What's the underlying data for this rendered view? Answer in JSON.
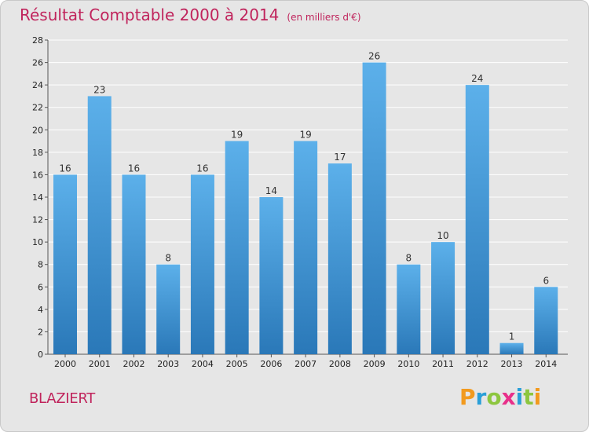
{
  "header": {
    "title": "Résultat Comptable 2000 à 2014",
    "subtitle": "(en milliers d'€)"
  },
  "commune": "BLAZIERT",
  "logo": {
    "text": "Proxiti",
    "letters": [
      {
        "ch": "P",
        "color": "#f29a1e"
      },
      {
        "ch": "r",
        "color": "#2a9fd8"
      },
      {
        "ch": "o",
        "color": "#8dc63f"
      },
      {
        "ch": "x",
        "color": "#e8308a"
      },
      {
        "ch": "i",
        "color": "#2a9fd8"
      },
      {
        "ch": "t",
        "color": "#8dc63f"
      },
      {
        "ch": "i",
        "color": "#f29a1e"
      }
    ]
  },
  "colors": {
    "title": "#c0245c",
    "bar_top": "#5cb0ea",
    "bar_bottom": "#2a78b8",
    "grid": "#ffffff",
    "axis_text": "#222222"
  },
  "chart_data": {
    "type": "bar",
    "title": "Résultat Comptable 2000 à 2014",
    "ylabel": "(en milliers d'€)",
    "xlabel": "",
    "categories": [
      "2000",
      "2001",
      "2002",
      "2003",
      "2004",
      "2005",
      "2006",
      "2007",
      "2008",
      "2009",
      "2010",
      "2011",
      "2012",
      "2013",
      "2014"
    ],
    "values": [
      16,
      23,
      16,
      8,
      16,
      19,
      14,
      19,
      17,
      26,
      8,
      10,
      24,
      1,
      6
    ],
    "ylim": [
      0,
      28
    ],
    "yticks": [
      0,
      2,
      4,
      6,
      8,
      10,
      12,
      14,
      16,
      18,
      20,
      22,
      24,
      26,
      28
    ],
    "grid": true
  }
}
